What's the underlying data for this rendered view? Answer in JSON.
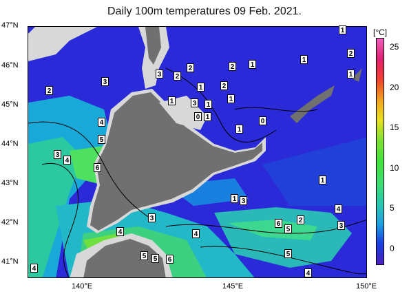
{
  "title": "Daily 100m temperatures 09 Feb. 2021.",
  "lat_labels": [
    "47°N",
    "46°N",
    "45°N",
    "44°N",
    "43°N",
    "42°N",
    "41°N"
  ],
  "lon_labels": [
    "140°E",
    "145°E",
    "150°E"
  ],
  "colorbar": {
    "unit": "[°C]",
    "ticks": [
      "25",
      "20",
      "15",
      "10",
      "5",
      "0"
    ],
    "colors": [
      "#4a1fc0",
      "#1a3fe0",
      "#1fa0e0",
      "#2ac8b0",
      "#3ce070",
      "#40e040",
      "#80e030",
      "#e8e020",
      "#f0a020",
      "#f04030",
      "#e02070",
      "#f060c0"
    ]
  },
  "contour_labels": [
    {
      "text": "1"
    },
    {
      "text": "1"
    },
    {
      "text": "2"
    },
    {
      "text": "1"
    },
    {
      "text": "2"
    },
    {
      "text": "1"
    },
    {
      "text": "3"
    },
    {
      "text": "2"
    },
    {
      "text": "2"
    },
    {
      "text": "2"
    },
    {
      "text": "1"
    },
    {
      "text": "1"
    },
    {
      "text": "3"
    },
    {
      "text": "1"
    },
    {
      "text": "2"
    },
    {
      "text": "1"
    },
    {
      "text": "3"
    },
    {
      "text": "1"
    },
    {
      "text": "0"
    },
    {
      "text": "1"
    },
    {
      "text": "0"
    },
    {
      "text": "1"
    },
    {
      "text": "4"
    },
    {
      "text": "5"
    },
    {
      "text": "3"
    },
    {
      "text": "4"
    },
    {
      "text": "6"
    },
    {
      "text": "1"
    },
    {
      "text": "4"
    },
    {
      "text": "3"
    },
    {
      "text": "3"
    },
    {
      "text": "4"
    },
    {
      "text": "3"
    },
    {
      "text": "4"
    },
    {
      "text": "6"
    },
    {
      "text": "5"
    },
    {
      "text": "2"
    },
    {
      "text": "5"
    },
    {
      "text": "4"
    },
    {
      "text": "5"
    },
    {
      "text": "5"
    },
    {
      "text": "6"
    },
    {
      "text": "5"
    },
    {
      "text": "4"
    },
    {
      "text": "4"
    }
  ]
}
